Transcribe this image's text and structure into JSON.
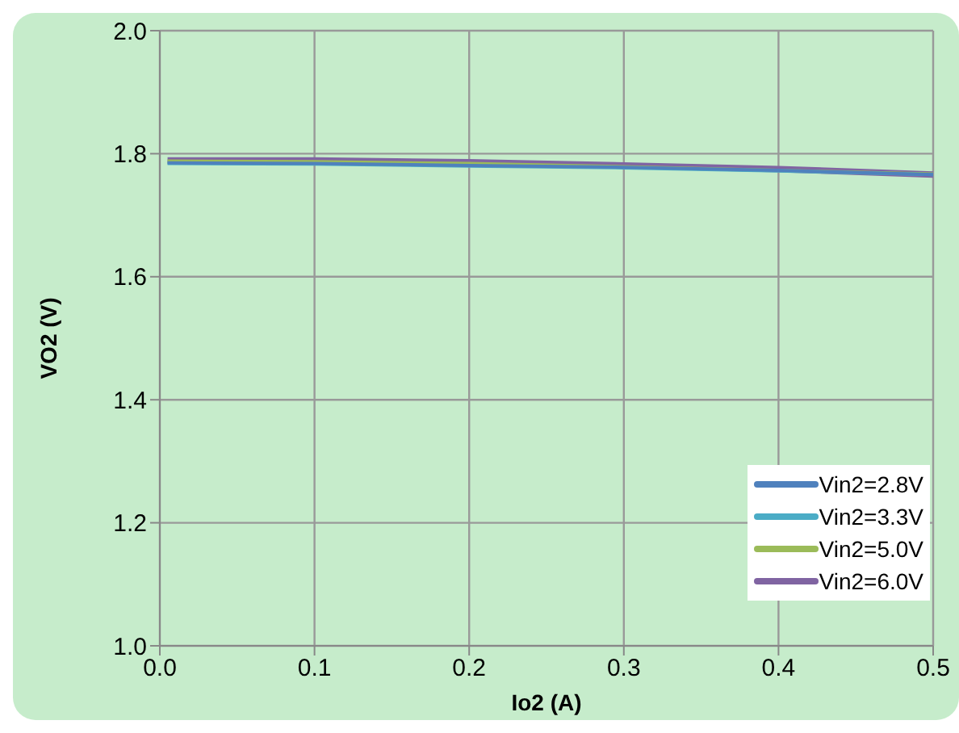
{
  "chart_data": {
    "type": "line",
    "xlabel": "Io2 (A)",
    "ylabel": "VO2 (V)",
    "x": [
      0.005,
      0.1,
      0.2,
      0.3,
      0.4,
      0.5
    ],
    "series": [
      {
        "name": "Vin2=2.8V",
        "color": "#4f81bd",
        "values": [
          1.785,
          1.784,
          1.781,
          1.778,
          1.773,
          1.766
        ]
      },
      {
        "name": "Vin2=3.3V",
        "color": "#4bacc6",
        "values": [
          1.784,
          1.783,
          1.78,
          1.777,
          1.772,
          1.766
        ]
      },
      {
        "name": "Vin2=5.0V",
        "color": "#9bbb59",
        "values": [
          1.788,
          1.787,
          1.784,
          1.779,
          1.773,
          1.767
        ]
      },
      {
        "name": "Vin2=6.0V",
        "color": "#8064a2",
        "values": [
          1.789,
          1.789,
          1.786,
          1.781,
          1.775,
          1.766
        ]
      }
    ],
    "xlim": [
      0,
      0.5
    ],
    "xticks": [
      {
        "value": 0,
        "label": "0.0"
      },
      0.1,
      0.2,
      0.3,
      0.4,
      0.5
    ],
    "ylim": [
      1.0,
      2.0
    ],
    "yticks": [
      {
        "value": 1,
        "label": "1.0"
      },
      1.2,
      1.4,
      1.6,
      1.8,
      {
        "value": 2,
        "label": "2.0"
      }
    ],
    "grid": true,
    "legend": "bottom right",
    "marker": "none",
    "line_style": "solid"
  }
}
